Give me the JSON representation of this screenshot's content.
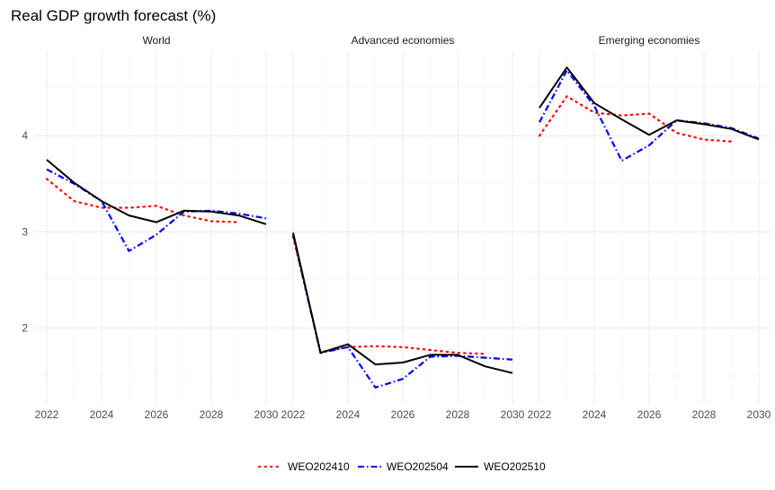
{
  "chart_data": {
    "type": "line",
    "title": "Real GDP growth forecast (%)",
    "xlabel": "",
    "ylabel": "",
    "x": [
      2022,
      2023,
      2024,
      2025,
      2026,
      2027,
      2028,
      2029,
      2030
    ],
    "x_ticks": [
      "2022",
      "2024",
      "2026",
      "2028",
      "2030"
    ],
    "y_ticks": [
      "2",
      "3",
      "4"
    ],
    "ylim": [
      1.21,
      4.88
    ],
    "grid": true,
    "legend_position": "bottom",
    "legend": [
      "WEO202410",
      "WEO202504",
      "WEO202510"
    ],
    "series_styles": [
      {
        "name": "WEO202410",
        "color": "#ff0000",
        "dash": "dotted"
      },
      {
        "name": "WEO202504",
        "color": "#0000ff",
        "dash": "dashdot"
      },
      {
        "name": "WEO202510",
        "color": "#000000",
        "dash": "solid"
      }
    ],
    "panels": [
      {
        "title": "World",
        "series": [
          {
            "name": "WEO202410",
            "values": [
              3.55,
              3.32,
              3.25,
              3.25,
              3.27,
              3.17,
              3.11,
              3.1,
              null
            ]
          },
          {
            "name": "WEO202504",
            "values": [
              3.65,
              3.5,
              3.32,
              2.8,
              2.97,
              3.21,
              3.22,
              3.19,
              3.14
            ]
          },
          {
            "name": "WEO202510",
            "values": [
              3.75,
              3.51,
              3.32,
              3.17,
              3.1,
              3.22,
              3.21,
              3.17,
              3.08
            ]
          }
        ]
      },
      {
        "title": "Advanced economies",
        "series": [
          {
            "name": "WEO202410",
            "values": [
              2.95,
              1.75,
              1.8,
              1.81,
              1.8,
              1.77,
              1.74,
              1.73,
              null
            ]
          },
          {
            "name": "WEO202504",
            "values": [
              2.97,
              1.74,
              1.8,
              1.38,
              1.47,
              1.7,
              1.71,
              1.69,
              1.67
            ]
          },
          {
            "name": "WEO202510",
            "values": [
              2.99,
              1.74,
              1.83,
              1.62,
              1.64,
              1.72,
              1.72,
              1.6,
              1.53
            ]
          }
        ]
      },
      {
        "title": "Emerging economies",
        "series": [
          {
            "name": "WEO202410",
            "values": [
              4.0,
              4.41,
              4.24,
              4.21,
              4.23,
              4.03,
              3.96,
              3.94,
              null
            ]
          },
          {
            "name": "WEO202504",
            "values": [
              4.14,
              4.68,
              4.31,
              3.74,
              3.9,
              4.16,
              4.13,
              4.08,
              3.97
            ]
          },
          {
            "name": "WEO202510",
            "values": [
              4.29,
              4.71,
              4.34,
              4.17,
              4.01,
              4.16,
              4.12,
              4.07,
              3.96
            ]
          }
        ]
      }
    ]
  }
}
